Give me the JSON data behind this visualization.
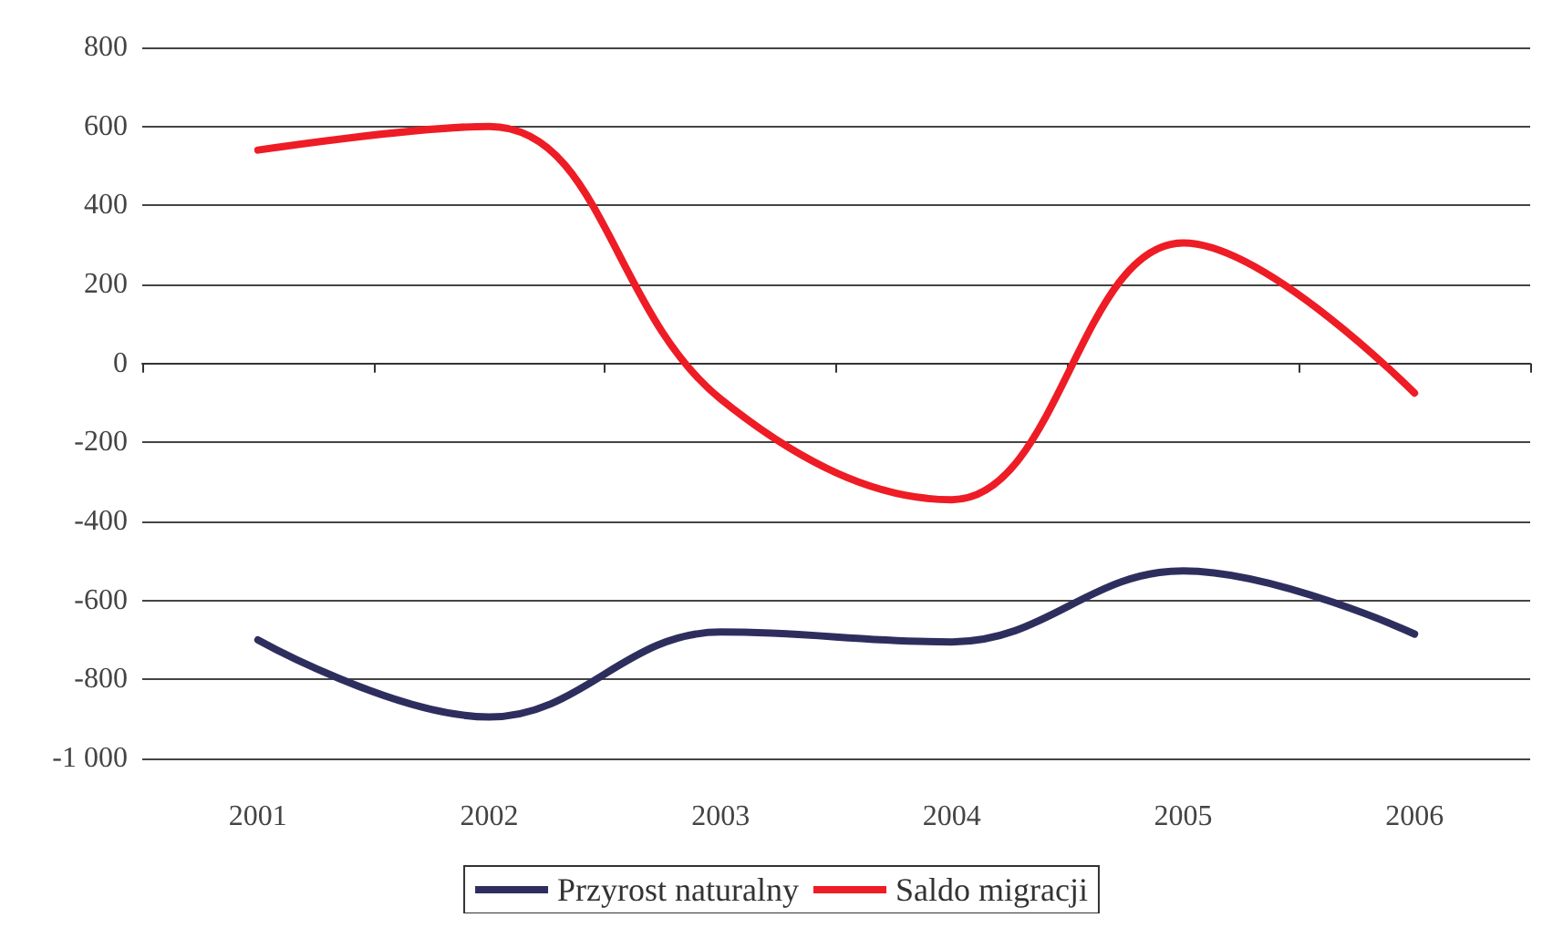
{
  "chart_data": {
    "type": "line",
    "categories": [
      "2001",
      "2002",
      "2003",
      "2004",
      "2005",
      "2006"
    ],
    "series": [
      {
        "name": "Przyrost naturalny",
        "color": "#2e2e5e",
        "values": [
          -700,
          -895,
          -680,
          -705,
          -525,
          -685
        ]
      },
      {
        "name": "Saldo migracji",
        "color": "#ee1c25",
        "values": [
          540,
          600,
          -90,
          -345,
          305,
          -75
        ]
      }
    ],
    "ylim": [
      -1000,
      800
    ],
    "yticks": [
      {
        "value": -1000,
        "label": "-1 000"
      },
      -800,
      -600,
      -400,
      -200,
      0,
      200,
      400,
      600,
      800
    ],
    "grid": "y",
    "legend": "bottom",
    "marker": "none",
    "line_style": "solid"
  }
}
